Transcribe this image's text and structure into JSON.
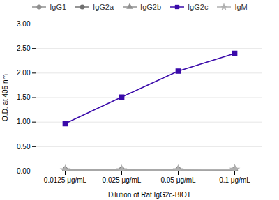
{
  "chart_data": {
    "type": "line",
    "xlabel": "Dilution of Rat IgG2c-BIOT",
    "ylabel": "O.D. at 405 nm",
    "categories": [
      "0.0125 μg/mL",
      "0.025 μg/mL",
      "0.05 μg/mL",
      "0.1 μg/mL"
    ],
    "ylim": [
      0.0,
      3.0
    ],
    "yticks": [
      {
        "value": 0.0,
        "label": "0.00"
      },
      {
        "value": 0.5,
        "label": "0.50"
      },
      {
        "value": 1.0,
        "label": "1.00"
      },
      {
        "value": 1.5,
        "label": "1.50"
      },
      {
        "value": 2.0,
        "label": "2.00"
      },
      {
        "value": 2.5,
        "label": "2.50"
      },
      {
        "value": 3.0,
        "label": "3.00"
      }
    ],
    "grid": true,
    "legend": "top",
    "series": [
      {
        "name": "IgG1",
        "color": "#909090",
        "marker": "circle",
        "values": [
          0.02,
          0.02,
          0.02,
          0.02
        ]
      },
      {
        "name": "IgG2a",
        "color": "#707070",
        "marker": "circle",
        "values": [
          0.02,
          0.03,
          0.03,
          0.03
        ]
      },
      {
        "name": "IgG2b",
        "color": "#909090",
        "marker": "triangle",
        "values": [
          0.02,
          0.02,
          0.03,
          0.03
        ]
      },
      {
        "name": "IgG2c",
        "color": "#3a0aaa",
        "marker": "square",
        "values": [
          0.97,
          1.51,
          2.04,
          2.4
        ]
      },
      {
        "name": "IgM",
        "color": "#b0b0b0",
        "marker": "star",
        "values": [
          0.02,
          0.02,
          0.02,
          0.03
        ]
      }
    ]
  }
}
